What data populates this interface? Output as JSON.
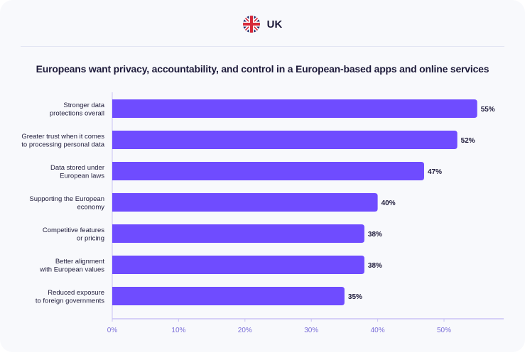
{
  "header": {
    "country": "UK",
    "flag_icon": "uk-flag-icon"
  },
  "chart_data": {
    "type": "bar",
    "orientation": "horizontal",
    "title": "Europeans want privacy, accountability, and control in a European-based apps and online services",
    "categories": [
      [
        "Stronger data",
        "protections overall"
      ],
      [
        "Greater trust when it comes",
        "to processing personal data"
      ],
      [
        "Data stored under",
        "European laws"
      ],
      [
        "Supporting the European",
        "economy"
      ],
      [
        "Competitive features",
        "or pricing"
      ],
      [
        "Better alignment",
        "with European values"
      ],
      [
        "Reduced exposure",
        "to foreign governments"
      ]
    ],
    "values": [
      55,
      52,
      47,
      40,
      38,
      38,
      35
    ],
    "value_labels": [
      "55%",
      "52%",
      "47%",
      "40%",
      "38%",
      "38%",
      "35%"
    ],
    "xlim": [
      0,
      59
    ],
    "xticks": [
      0,
      10,
      20,
      30,
      40,
      50
    ],
    "xtick_labels": [
      "0%",
      "10%",
      "20%",
      "30%",
      "40%",
      "50%"
    ],
    "xlabel": "",
    "ylabel": "",
    "grid": false,
    "bar_color": "#6f4cff",
    "axis_color": "#c9c2f5"
  }
}
